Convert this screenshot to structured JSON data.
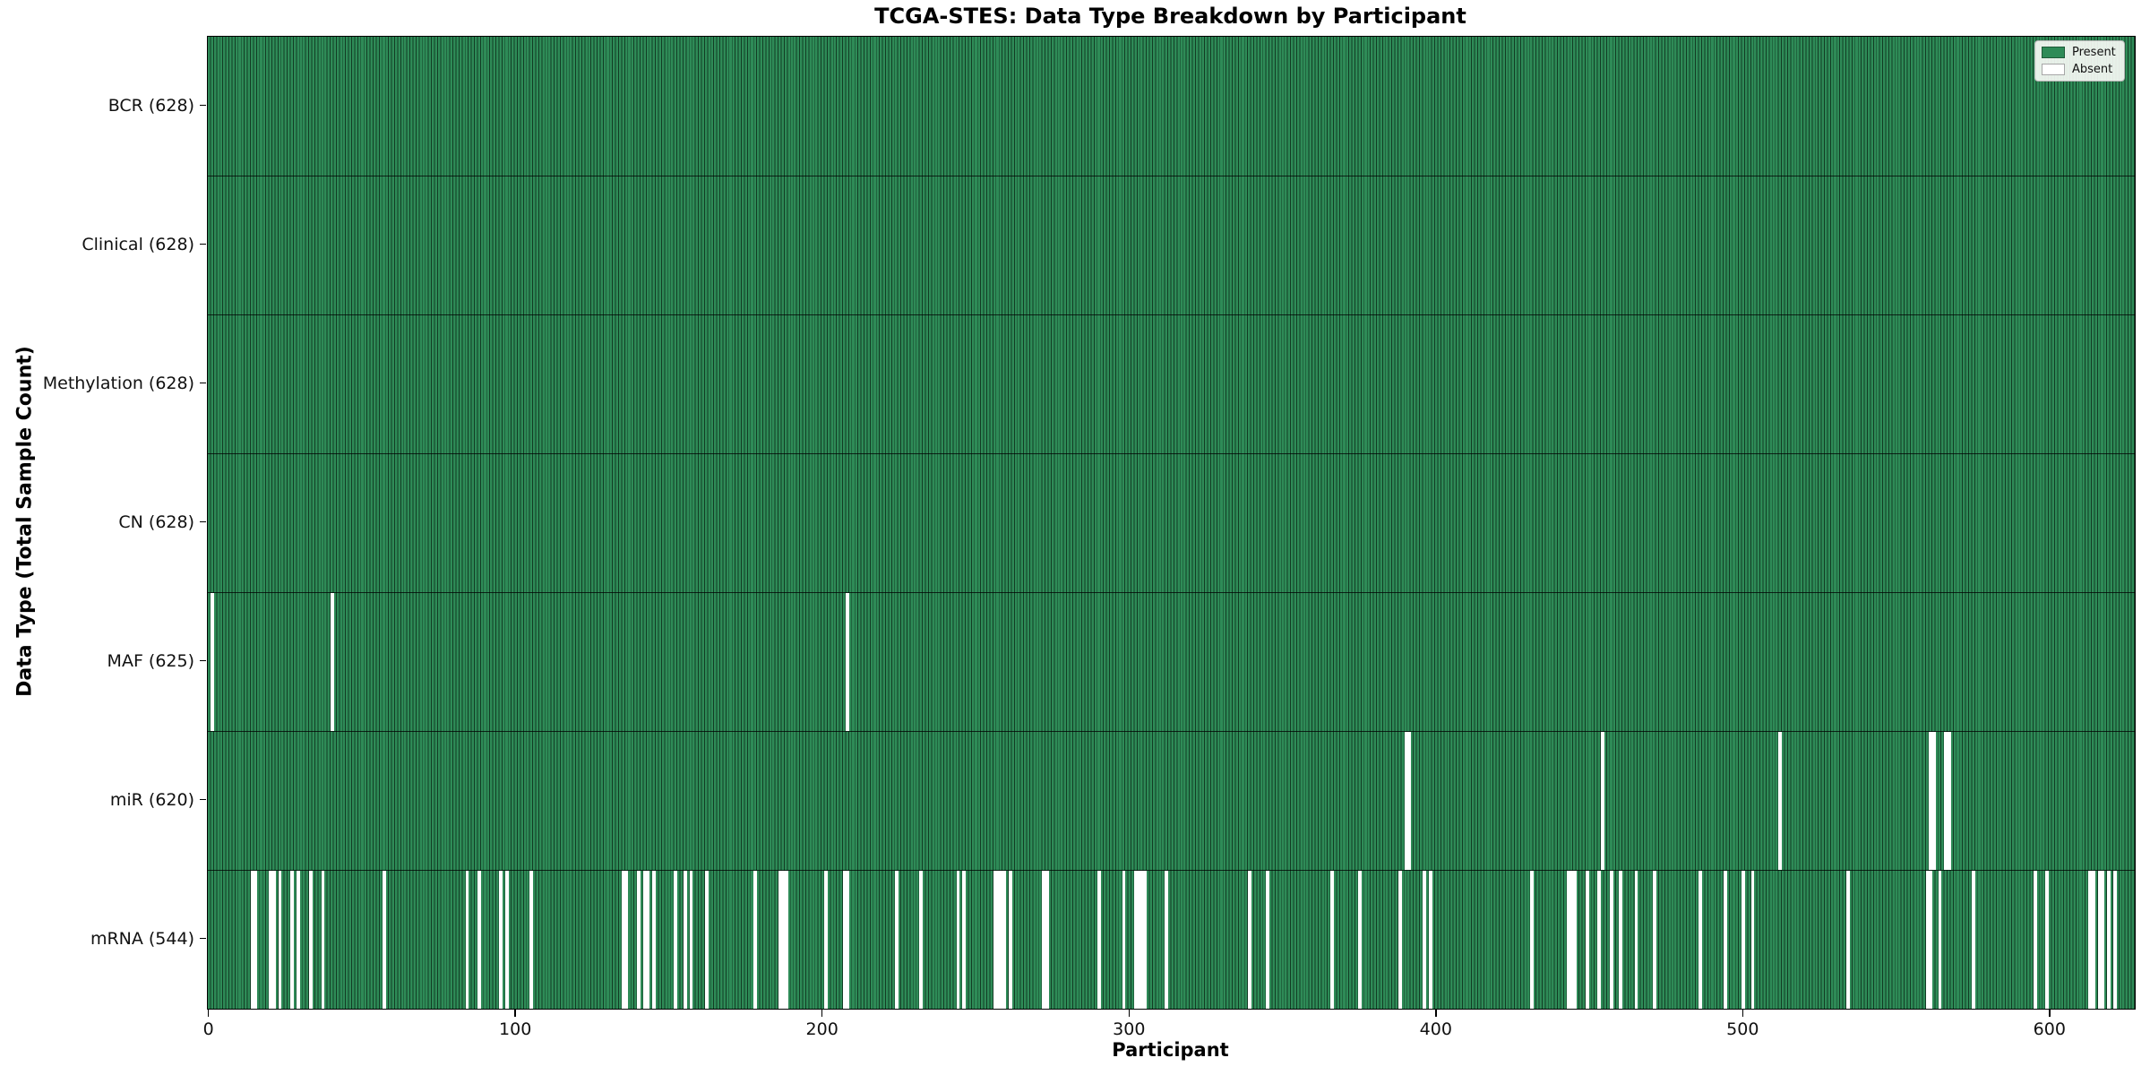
{
  "figure": {
    "title": "TCGA-STES: Data Type Breakdown by Participant",
    "xlabel": "Participant",
    "ylabel": "Data Type (Total Sample Count)"
  },
  "legend": {
    "items": [
      {
        "label": "Present",
        "color": "#2e8b57"
      },
      {
        "label": "Absent",
        "color": "#ffffff"
      }
    ]
  },
  "chart_data": {
    "type": "heatmap",
    "subtype": "presence-absence matrix (green = present, white = absent)",
    "title": "TCGA-STES: Data Type Breakdown by Participant",
    "xlabel": "Participant",
    "ylabel": "Data Type (Total Sample Count)",
    "n_participants": 628,
    "xlim": [
      0,
      628
    ],
    "x_ticks": [
      0,
      100,
      200,
      300,
      400,
      500,
      600
    ],
    "grid": false,
    "legend_position": "upper right",
    "colors": {
      "present": "#2e8b57",
      "present_edge": "#123c24",
      "absent": "#ffffff",
      "row_divider": "#000000"
    },
    "rows": [
      {
        "label": "BCR",
        "total": 628,
        "display": "BCR (628)",
        "absent": []
      },
      {
        "label": "Clinical",
        "total": 628,
        "display": "Clinical (628)",
        "absent": []
      },
      {
        "label": "Methylation",
        "total": 628,
        "display": "Methylation (628)",
        "absent": []
      },
      {
        "label": "CN",
        "total": 628,
        "display": "CN (628)",
        "absent": []
      },
      {
        "label": "MAF",
        "total": 625,
        "display": "MAF (625)",
        "absent": [
          1,
          40,
          208
        ]
      },
      {
        "label": "miR",
        "total": 620,
        "display": "miR (620)",
        "absent": [
          390,
          391,
          454,
          512,
          561,
          562,
          566,
          567
        ]
      },
      {
        "label": "mRNA",
        "total": 544,
        "display": "mRNA (544)",
        "absent": [
          14,
          15,
          20,
          21,
          23,
          27,
          29,
          33,
          37,
          57,
          84,
          88,
          95,
          97,
          105,
          135,
          136,
          140,
          142,
          143,
          145,
          152,
          155,
          157,
          162,
          178,
          186,
          187,
          188,
          201,
          207,
          208,
          224,
          232,
          244,
          246,
          256,
          257,
          258,
          259,
          261,
          272,
          273,
          290,
          298,
          302,
          303,
          304,
          305,
          312,
          339,
          345,
          366,
          375,
          388,
          396,
          398,
          431,
          443,
          444,
          445,
          449,
          453,
          457,
          460,
          465,
          471,
          486,
          494,
          500,
          503,
          534,
          560,
          561,
          564,
          575,
          595,
          599,
          613,
          614,
          616,
          617,
          619,
          621
        ]
      }
    ]
  }
}
